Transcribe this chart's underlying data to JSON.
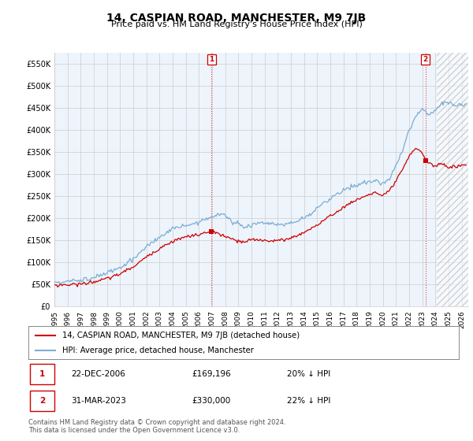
{
  "title": "14, CASPIAN ROAD, MANCHESTER, M9 7JB",
  "subtitle": "Price paid vs. HM Land Registry's House Price Index (HPI)",
  "ylabel_ticks": [
    "£0",
    "£50K",
    "£100K",
    "£150K",
    "£200K",
    "£250K",
    "£300K",
    "£350K",
    "£400K",
    "£450K",
    "£500K",
    "£550K"
  ],
  "ytick_values": [
    0,
    50000,
    100000,
    150000,
    200000,
    250000,
    300000,
    350000,
    400000,
    450000,
    500000,
    550000
  ],
  "ylim": [
    0,
    575000
  ],
  "xlim_start": 1995.0,
  "xlim_end": 2026.5,
  "hpi_color": "#7aadd4",
  "price_color": "#cc0000",
  "marker1_date": 2006.97,
  "marker2_date": 2023.25,
  "marker1_price": 169196,
  "marker2_price": 330000,
  "legend_label1": "14, CASPIAN ROAD, MANCHESTER, M9 7JB (detached house)",
  "legend_label2": "HPI: Average price, detached house, Manchester",
  "annotation1_date": "22-DEC-2006",
  "annotation1_price": "£169,196",
  "annotation1_hpi": "20% ↓ HPI",
  "annotation2_date": "31-MAR-2023",
  "annotation2_price": "£330,000",
  "annotation2_hpi": "22% ↓ HPI",
  "footer": "Contains HM Land Registry data © Crown copyright and database right 2024.\nThis data is licensed under the Open Government Licence v3.0.",
  "background_color": "#ffffff",
  "plot_bg_color": "#eef4fb",
  "grid_color": "#cccccc",
  "hatch_start": 2024.08
}
